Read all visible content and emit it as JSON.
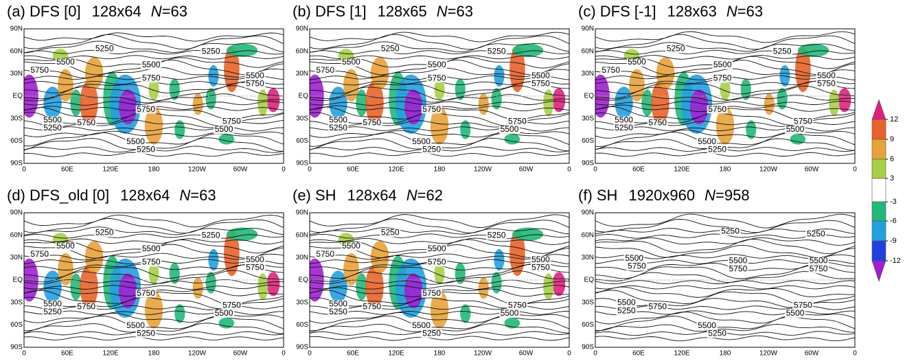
{
  "panels": [
    {
      "label": "(a) DFS [0]",
      "grid": "128x64",
      "n_symbol": "N",
      "truncation": "=63",
      "contour_labels": [
        "5250",
        "5250",
        "5750",
        "5500",
        "5500",
        "5750",
        "5500",
        "5750",
        "5750",
        "5500",
        "5250",
        "5750",
        "5750",
        "5500",
        "5500",
        "5250"
      ]
    },
    {
      "label": "(b) DFS [1]",
      "grid": "128x65",
      "n_symbol": "N",
      "truncation": "=63",
      "contour_labels": [
        "5250",
        "5250",
        "5750",
        "5500",
        "5500",
        "5750",
        "5500",
        "5750",
        "5750",
        "5500",
        "5250",
        "5750",
        "5750",
        "5500",
        "5500",
        "5250"
      ]
    },
    {
      "label": "(c) DFS [-1]",
      "grid": "128x63",
      "n_symbol": "N",
      "truncation": "=63",
      "contour_labels": [
        "5250",
        "5250",
        "5750",
        "5500",
        "5500",
        "5750",
        "5500",
        "5750",
        "5750",
        "5500",
        "5250",
        "5750",
        "5750",
        "5500",
        "5500",
        "5250"
      ]
    },
    {
      "label": "(d) DFS_old [0]",
      "grid": "128x64",
      "n_symbol": "N",
      "truncation": "=63",
      "contour_labels": [
        "5250",
        "5250",
        "5750",
        "5500",
        "5500",
        "5750",
        "5500",
        "5750",
        "5750",
        "5500",
        "5250",
        "5750",
        "5750",
        "5500",
        "5500",
        "5250"
      ]
    },
    {
      "label": "(e) SH",
      "grid": "128x64",
      "n_symbol": "N",
      "truncation": "=62",
      "contour_labels": [
        "5250",
        "5250",
        "5750",
        "5500",
        "5500",
        "5750",
        "5500",
        "5750",
        "5750",
        "5500",
        "5250",
        "5750",
        "5750",
        "5500",
        "5500",
        "5250"
      ]
    },
    {
      "label": "(f) SH",
      "grid": "1920x960",
      "n_symbol": "N",
      "truncation": "=958",
      "contour_labels": [
        "5250",
        "5250",
        "5500",
        "5750",
        "5500",
        "5750",
        "5500",
        "5750",
        "5500",
        "5250",
        "5750",
        "5750",
        "5500",
        "5500",
        "5250"
      ]
    }
  ],
  "lat_labels": [
    "90N",
    "60N",
    "30N",
    "EQ",
    "30S",
    "60S",
    "90S"
  ],
  "lon_labels": [
    "0",
    "60E",
    "120E",
    "180",
    "120W",
    "60W",
    "0"
  ],
  "colorbar": {
    "ticks": [
      12,
      9,
      6,
      3,
      -3,
      -6,
      -9,
      -12
    ],
    "colors": [
      "#e0207f",
      "#e8632a",
      "#e8a23a",
      "#a6d045",
      "#ffffff",
      "#22b878",
      "#22a0e0",
      "#2040e0",
      "#a020d0"
    ]
  }
}
